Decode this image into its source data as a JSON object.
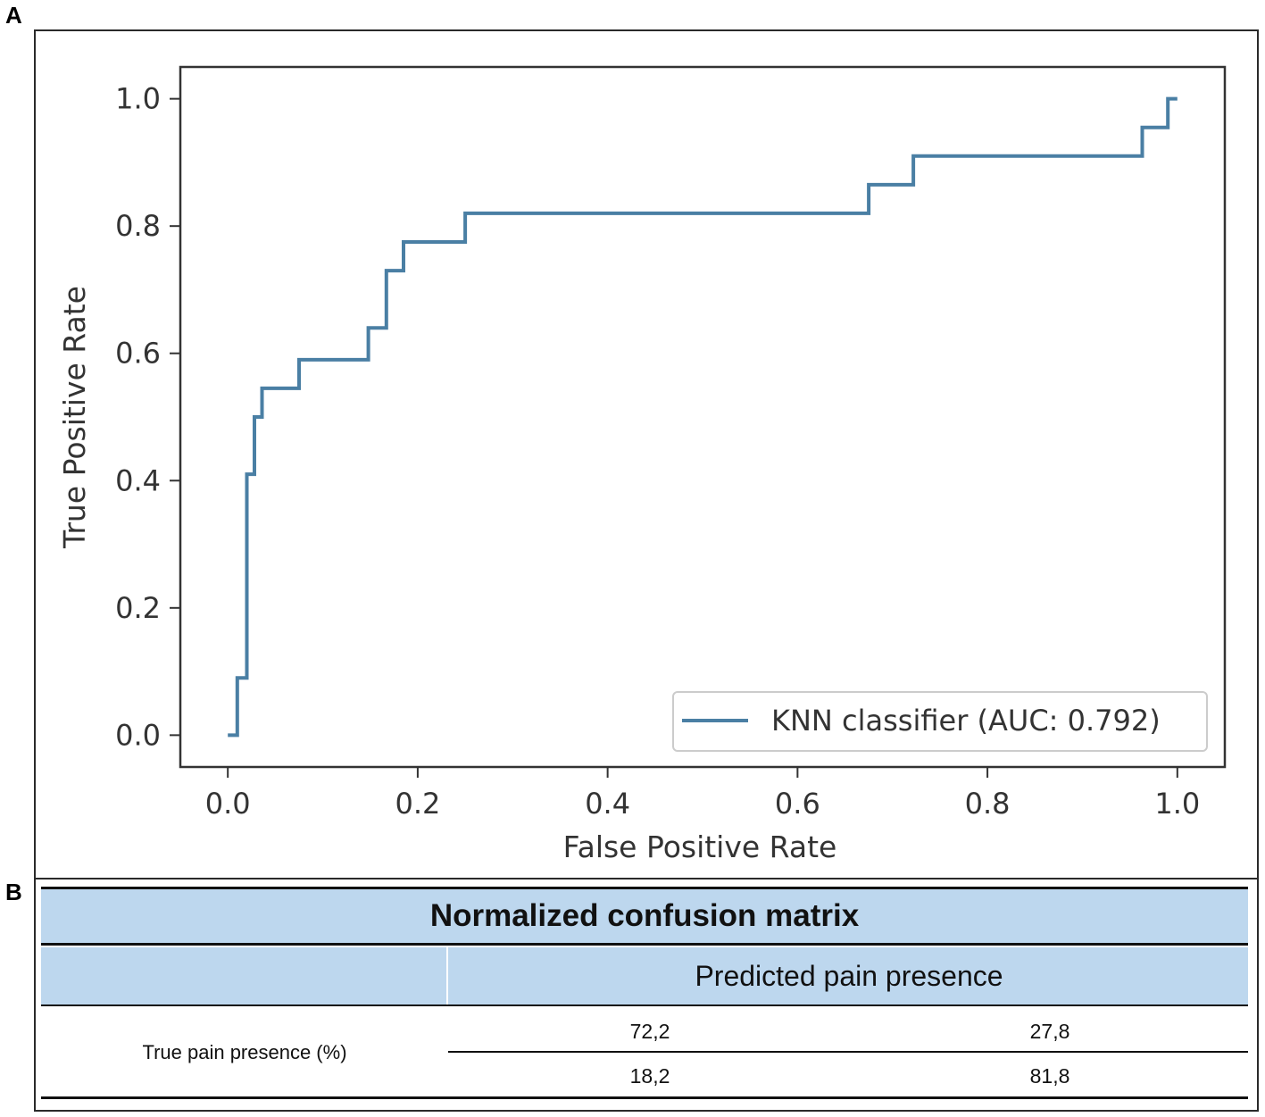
{
  "panels": {
    "a": "A",
    "b": "B"
  },
  "chart_data": {
    "type": "line",
    "title": "",
    "xlabel": "False Positive Rate",
    "ylabel": "True Positive Rate",
    "xlim": [
      -0.05,
      1.05
    ],
    "ylim": [
      -0.05,
      1.05
    ],
    "xticks": [
      0.0,
      0.2,
      0.4,
      0.6,
      0.8,
      1.0
    ],
    "yticks": [
      0.0,
      0.2,
      0.4,
      0.6,
      0.8,
      1.0
    ],
    "xtick_labels": [
      "0.0",
      "0.2",
      "0.4",
      "0.6",
      "0.8",
      "1.0"
    ],
    "ytick_labels": [
      "0.0",
      "0.2",
      "0.4",
      "0.6",
      "0.8",
      "1.0"
    ],
    "grid": false,
    "legend_position": "lower-right",
    "color": "#4a7fa4",
    "series": [
      {
        "name": "KNN classifier (AUC: 0.792)",
        "x": [
          0.0,
          0.01,
          0.01,
          0.02,
          0.02,
          0.028,
          0.028,
          0.036,
          0.036,
          0.075,
          0.075,
          0.148,
          0.148,
          0.167,
          0.167,
          0.185,
          0.185,
          0.25,
          0.25,
          0.675,
          0.675,
          0.722,
          0.722,
          0.963,
          0.963,
          0.99,
          0.99,
          1.0
        ],
        "y": [
          0.0,
          0.0,
          0.09,
          0.09,
          0.41,
          0.41,
          0.5,
          0.5,
          0.545,
          0.545,
          0.59,
          0.59,
          0.64,
          0.64,
          0.73,
          0.73,
          0.775,
          0.775,
          0.82,
          0.82,
          0.865,
          0.865,
          0.91,
          0.91,
          0.955,
          0.955,
          1.0,
          1.0
        ]
      }
    ]
  },
  "matrix": {
    "title": "Normalized confusion matrix",
    "predicted_label": "Predicted pain presence",
    "true_label": "True pain presence (%)",
    "rows": [
      [
        "72,2",
        "27,8"
      ],
      [
        "18,2",
        "81,8"
      ]
    ]
  }
}
